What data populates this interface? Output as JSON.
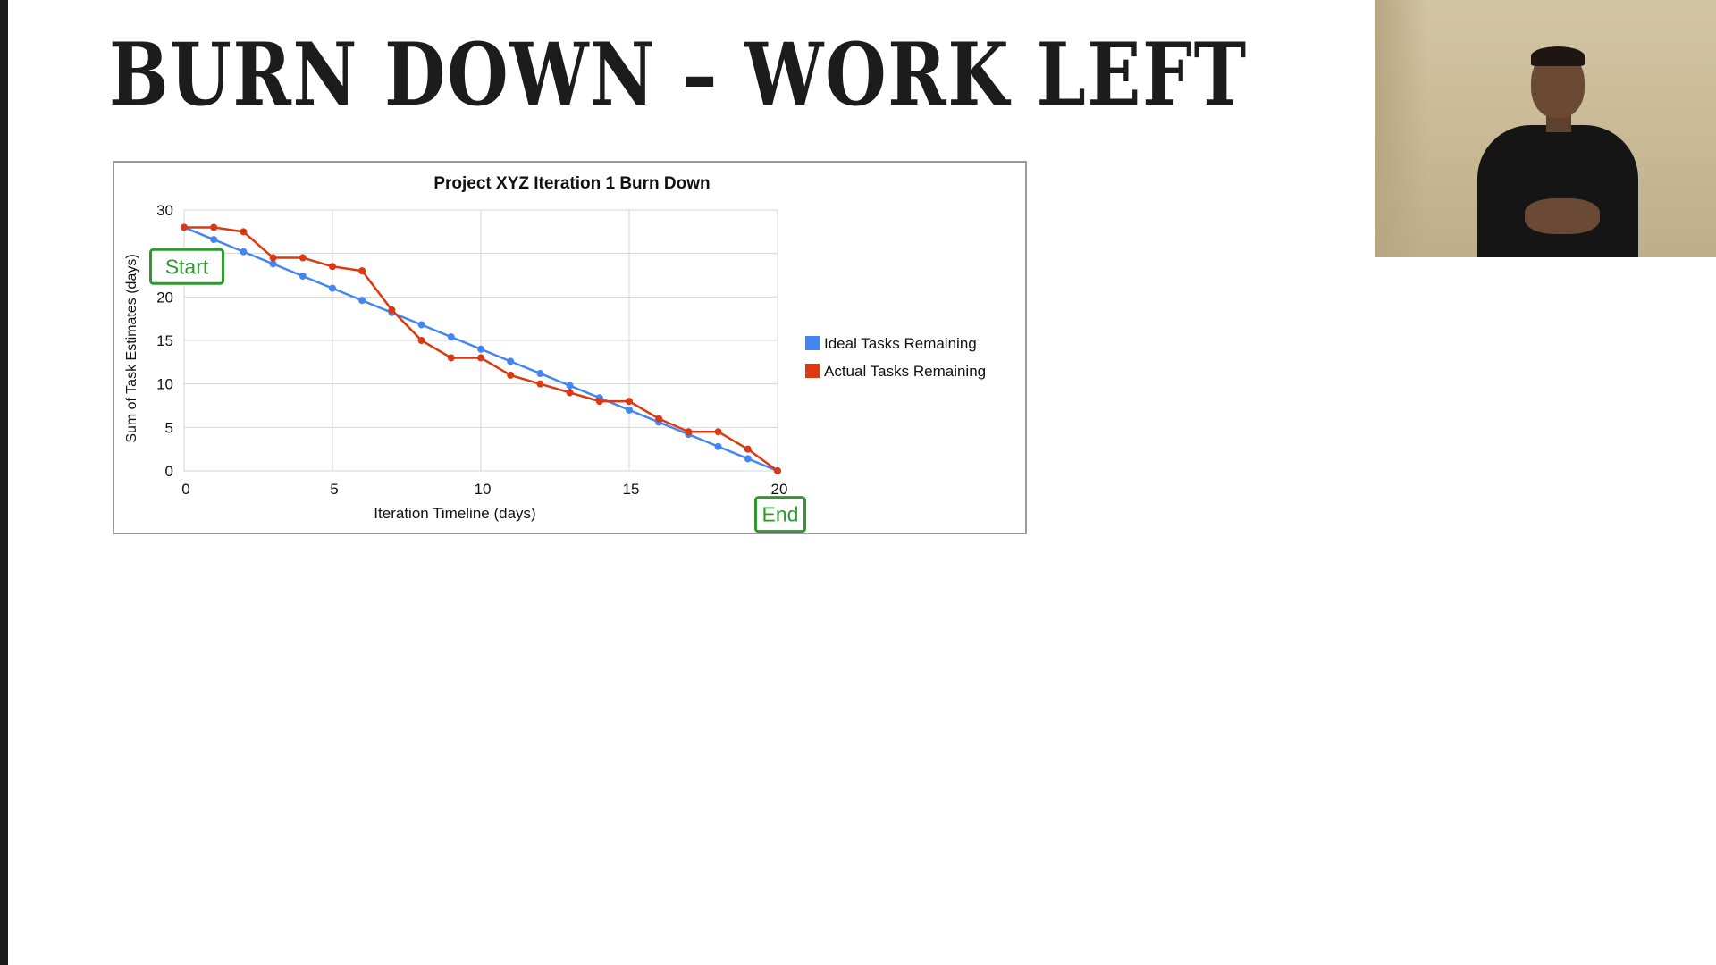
{
  "slide": {
    "title": "BURN DOWN – WORK LEFT"
  },
  "webcam": {
    "icon": "presenter-webcam"
  },
  "chart_data": {
    "type": "line",
    "title": "Project XYZ Iteration 1 Burn Down",
    "xlabel": "Iteration Timeline (days)",
    "ylabel": "Sum of Task Estimates (days)",
    "xlim": [
      0,
      20
    ],
    "ylim": [
      0,
      30
    ],
    "x_ticks": [
      0,
      5,
      10,
      15,
      20
    ],
    "y_ticks": [
      0,
      5,
      10,
      15,
      20,
      25,
      30
    ],
    "grid": true,
    "legend": "right",
    "x": [
      0,
      1,
      2,
      3,
      4,
      5,
      6,
      7,
      8,
      9,
      10,
      11,
      12,
      13,
      14,
      15,
      16,
      17,
      18,
      19,
      20
    ],
    "series": [
      {
        "name": "Ideal Tasks Remaining",
        "color": "#4285f4",
        "values": [
          28,
          26.6,
          25.2,
          23.8,
          22.4,
          21,
          19.6,
          18.2,
          16.8,
          15.4,
          14,
          12.6,
          11.2,
          9.8,
          8.4,
          7,
          5.6,
          4.2,
          2.8,
          1.4,
          0
        ]
      },
      {
        "name": "Actual Tasks Remaining",
        "color": "#dc3912",
        "values": [
          28,
          28,
          27.5,
          24.5,
          24.5,
          23.5,
          23,
          18.5,
          15,
          13,
          13,
          11,
          10,
          9,
          8,
          8,
          6,
          4.5,
          4.5,
          2.5,
          0
        ]
      }
    ],
    "annotations": [
      {
        "text": "Start",
        "color": "#2e9a2e",
        "at": [
          0,
          23.5
        ]
      },
      {
        "text": "End",
        "color": "#2e9a2e",
        "at": [
          20,
          -5
        ]
      }
    ]
  }
}
